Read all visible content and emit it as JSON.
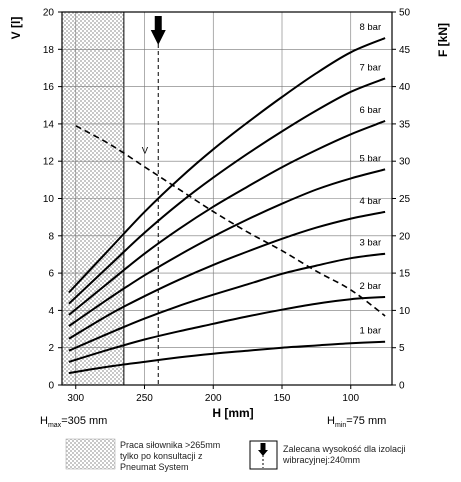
{
  "chart_data": {
    "type": "line",
    "xlabel": "H [mm]",
    "ylabel_left": "V [l]",
    "ylabel_right": "F [kN]",
    "x_ticks": [
      300,
      250,
      200,
      150,
      100
    ],
    "xlim": [
      310,
      70
    ],
    "ylim_left": [
      0,
      20
    ],
    "ylim_right": [
      0,
      50
    ],
    "y_ticks_left": [
      0,
      2,
      4,
      6,
      8,
      10,
      12,
      14,
      16,
      18,
      20
    ],
    "y_ticks_right": [
      0,
      5,
      10,
      15,
      20,
      25,
      30,
      35,
      40,
      45,
      50
    ],
    "grid": true,
    "x": [
      305,
      275,
      250,
      225,
      200,
      175,
      150,
      125,
      100,
      75
    ],
    "series": [
      {
        "name": "1 bar",
        "axis": "right",
        "values": [
          1.6,
          2.5,
          3.1,
          3.7,
          4.2,
          4.6,
          5.0,
          5.3,
          5.6,
          5.8
        ]
      },
      {
        "name": "2 bar",
        "axis": "right",
        "values": [
          3.1,
          4.8,
          6.1,
          7.2,
          8.2,
          9.2,
          10.1,
          10.9,
          11.5,
          11.8
        ]
      },
      {
        "name": "3 bar",
        "axis": "right",
        "values": [
          4.6,
          7.0,
          8.9,
          10.6,
          12.1,
          13.5,
          14.9,
          16.0,
          17.0,
          17.6
        ]
      },
      {
        "name": "4 bar",
        "axis": "right",
        "values": [
          6.2,
          9.5,
          11.9,
          14.1,
          16.1,
          17.9,
          19.6,
          21.1,
          22.3,
          23.2
        ]
      },
      {
        "name": "5 bar",
        "axis": "right",
        "values": [
          7.9,
          11.7,
          14.7,
          17.4,
          19.9,
          22.2,
          24.3,
          26.2,
          27.7,
          28.9
        ]
      },
      {
        "name": "6 bar",
        "axis": "right",
        "values": [
          9.4,
          13.9,
          17.6,
          20.9,
          23.9,
          26.6,
          29.2,
          31.5,
          33.6,
          35.4
        ]
      },
      {
        "name": "7 bar",
        "axis": "right",
        "values": [
          10.9,
          16.1,
          20.4,
          24.3,
          27.8,
          31.0,
          34.0,
          36.8,
          39.3,
          41.1
        ]
      },
      {
        "name": "8 bar",
        "axis": "right",
        "values": [
          12.4,
          18.3,
          23.2,
          27.6,
          31.6,
          35.2,
          38.6,
          41.8,
          44.6,
          46.5
        ]
      },
      {
        "name": "V",
        "axis": "left",
        "style": "dashed",
        "x": [
          300,
          275,
          250,
          225,
          200,
          175,
          150,
          125,
          100,
          75
        ],
        "values": [
          13.9,
          12.9,
          11.7,
          10.5,
          9.3,
          8.2,
          7.2,
          6.1,
          5.1,
          3.7
        ]
      }
    ],
    "marker_line": {
      "x": 240
    },
    "hatched_region": {
      "x_from": 310,
      "x_to": 265
    }
  },
  "labels": {
    "hmax_prefix": "H",
    "hmax_sub": "max",
    "hmax_value": "=305 mm",
    "hmin_prefix": "H",
    "hmin_sub": "min",
    "hmin_value": "=75 mm",
    "v_label": "V"
  },
  "legend": {
    "hatch_text": [
      "Praca siłownika >265mm",
      "tylko po konsultacji z",
      "Pneumat System"
    ],
    "arrow_text": [
      "Zalecana wysokość dla izolacji",
      "wibracyjnej:240mm"
    ]
  },
  "colors": {
    "curve": "#000000",
    "grid": "#777777",
    "hatch": "#cfcfcf"
  }
}
